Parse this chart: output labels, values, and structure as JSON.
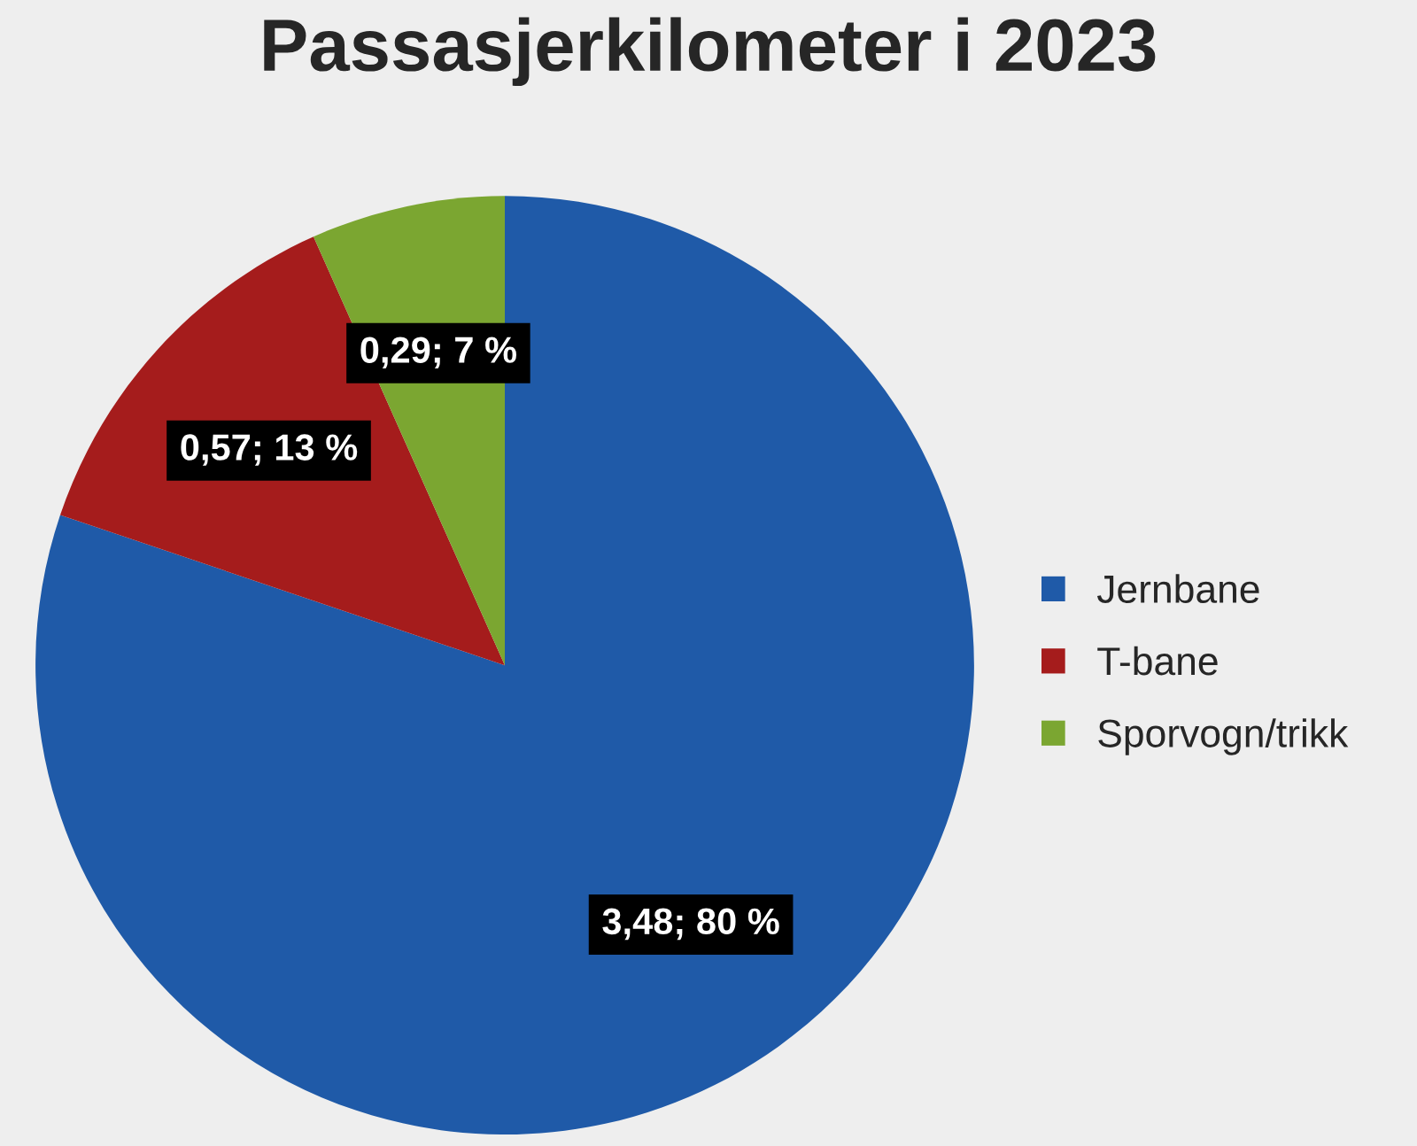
{
  "chart_data": {
    "type": "pie",
    "title": "Passasjerkilometer i 2023",
    "categories": [
      "Jernbane",
      "T-bane",
      "Sporvogn/trikk"
    ],
    "values": [
      3.48,
      0.57,
      0.29
    ],
    "value_labels": [
      "3,48; 80 %",
      "0,57; 13 %",
      "0,29; 7 %"
    ],
    "colors": [
      "#1f5aa8",
      "#a51c1c",
      "#7ba631"
    ],
    "legend": "right"
  }
}
